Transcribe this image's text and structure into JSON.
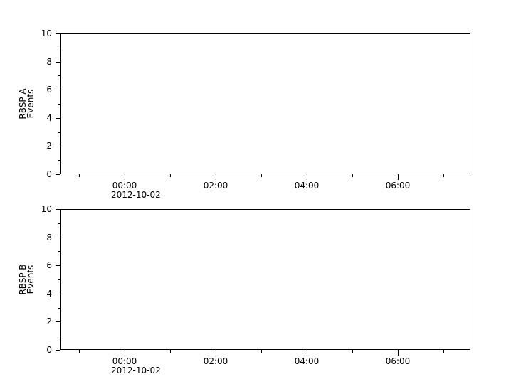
{
  "figure": {
    "background": "#ffffff",
    "axis_color": "#000000",
    "text_color": "#000000"
  },
  "chart_data": [
    {
      "id": "rbsp-a",
      "type": "line",
      "title": "",
      "ylabel": "RBSP-A Events",
      "ylabel_lines": [
        "RBSP-A",
        "Events"
      ],
      "series": [],
      "ylim": [
        0,
        10
      ],
      "ytick_major": [
        0,
        2,
        4,
        6,
        8,
        10
      ],
      "ytick_minor": [
        1,
        3,
        5,
        7,
        9
      ],
      "xlim_hours": [
        -1.40625,
        7.59375
      ],
      "xtick_major": [
        {
          "hour": 0,
          "label": "00:00"
        },
        {
          "hour": 2,
          "label": "02:00"
        },
        {
          "hour": 4,
          "label": "04:00"
        },
        {
          "hour": 6,
          "label": "06:00"
        }
      ],
      "xtick_minor_hours": [
        -1,
        1,
        3,
        5,
        7
      ],
      "date_label": "2012-10-02",
      "grid": false,
      "legend": null
    },
    {
      "id": "rbsp-b",
      "type": "line",
      "title": "",
      "ylabel": "RBSP-B Events",
      "ylabel_lines": [
        "RBSP-B",
        "Events"
      ],
      "series": [],
      "ylim": [
        0,
        10
      ],
      "ytick_major": [
        0,
        2,
        4,
        6,
        8,
        10
      ],
      "ytick_minor": [
        1,
        3,
        5,
        7,
        9
      ],
      "xlim_hours": [
        -1.40625,
        7.59375
      ],
      "xtick_major": [
        {
          "hour": 0,
          "label": "00:00"
        },
        {
          "hour": 2,
          "label": "02:00"
        },
        {
          "hour": 4,
          "label": "04:00"
        },
        {
          "hour": 6,
          "label": "06:00"
        }
      ],
      "xtick_minor_hours": [
        -1,
        1,
        3,
        5,
        7
      ],
      "date_label": "2012-10-02",
      "grid": false,
      "legend": null
    }
  ]
}
